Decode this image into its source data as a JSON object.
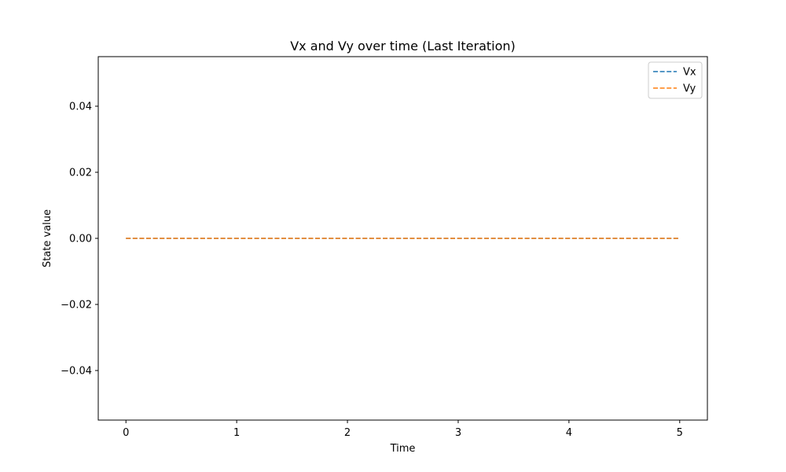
{
  "chart_data": {
    "type": "line",
    "title": "Vx and Vy over time (Last Iteration)",
    "xlabel": "Time",
    "ylabel": "State value",
    "xlim": [
      -0.25,
      5.25
    ],
    "ylim": [
      -0.055,
      0.055
    ],
    "xticks": [
      0,
      1,
      2,
      3,
      4,
      5
    ],
    "xtick_labels": [
      "0",
      "1",
      "2",
      "3",
      "4",
      "5"
    ],
    "yticks": [
      -0.04,
      -0.02,
      0.0,
      0.02,
      0.04
    ],
    "ytick_labels": [
      "−0.04",
      "−0.02",
      "0.00",
      "0.02",
      "0.04"
    ],
    "grid": false,
    "legend_position": "top-right",
    "series": [
      {
        "name": "Vx",
        "color": "#1f77b4",
        "line_style": "dashed",
        "x": [
          0,
          5
        ],
        "y": [
          0,
          0
        ]
      },
      {
        "name": "Vy",
        "color": "#ff7f0e",
        "line_style": "dashed",
        "x": [
          0,
          5
        ],
        "y": [
          0,
          0
        ]
      }
    ]
  }
}
